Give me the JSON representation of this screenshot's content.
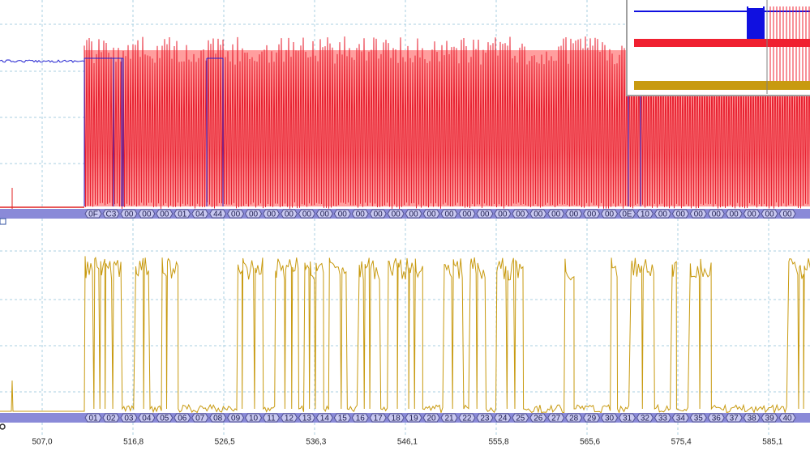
{
  "decode_row_1": {
    "bytes": [
      "0F",
      "C3",
      "00",
      "00",
      "00",
      "01",
      "04",
      "44",
      "00",
      "00",
      "00",
      "00",
      "00",
      "00",
      "00",
      "00",
      "00",
      "00",
      "00",
      "00",
      "00",
      "00",
      "00",
      "00",
      "00",
      "00",
      "00",
      "00",
      "00",
      "00",
      "0E",
      "10",
      "00",
      "00",
      "00",
      "00",
      "00",
      "00",
      "00",
      "00"
    ]
  },
  "decode_row_2": {
    "bytes": [
      "01",
      "02",
      "03",
      "04",
      "05",
      "06",
      "07",
      "08",
      "09",
      "10",
      "11",
      "12",
      "13",
      "14",
      "15",
      "16",
      "17",
      "18",
      "19",
      "20",
      "21",
      "22",
      "23",
      "24",
      "25",
      "26",
      "27",
      "28",
      "29",
      "30",
      "31",
      "32",
      "33",
      "34",
      "35",
      "36",
      "37",
      "38",
      "39",
      "40"
    ]
  },
  "time_axis": {
    "labels": [
      "507,0",
      "516,8",
      "526,5",
      "536,3",
      "546,1",
      "555,8",
      "565,6",
      "575,4",
      "585,1"
    ]
  }
}
